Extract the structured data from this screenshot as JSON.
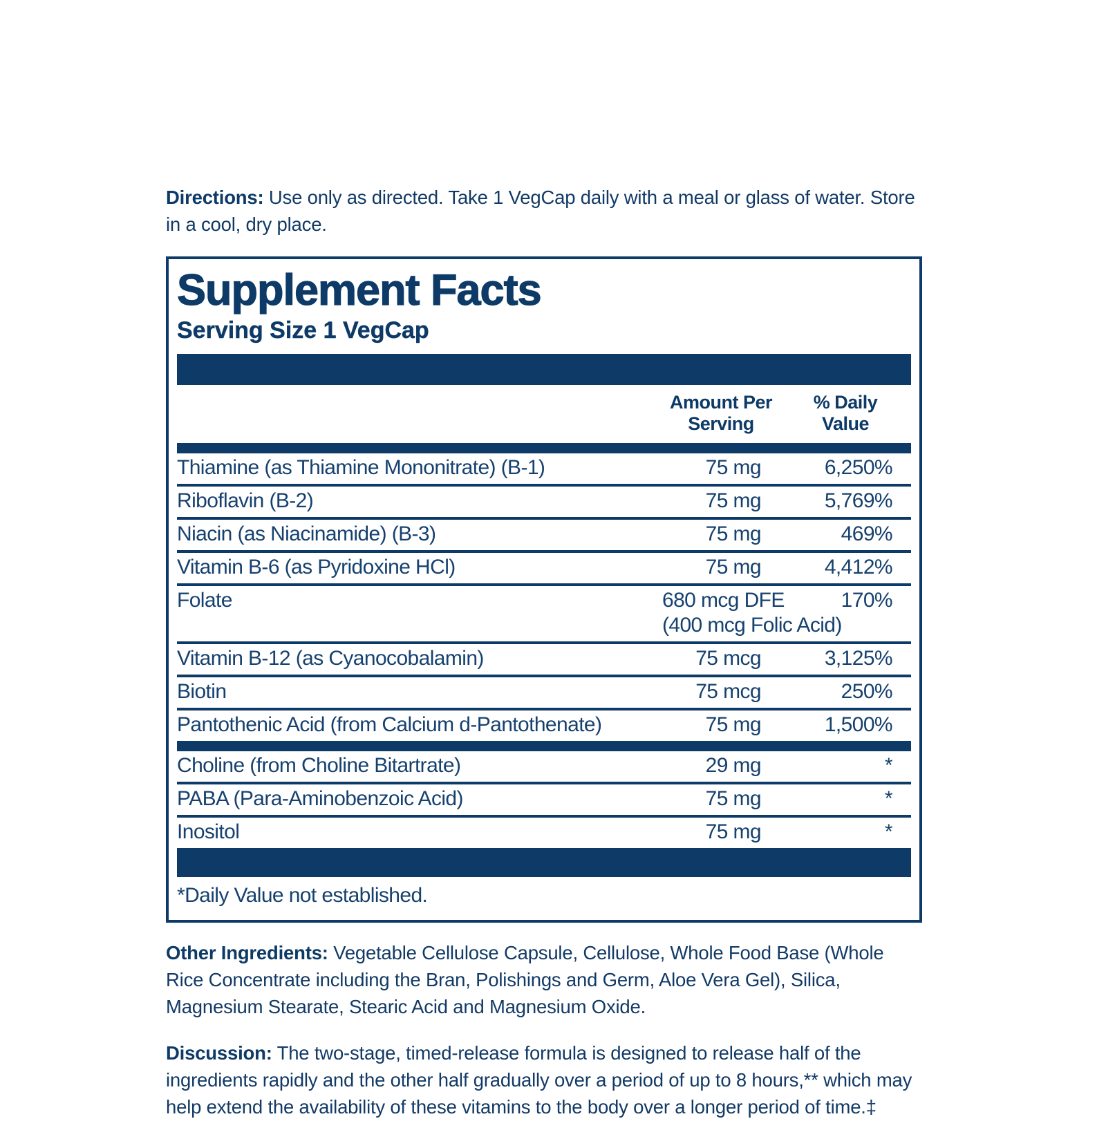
{
  "colors": {
    "navy": "#0d3a66",
    "text": "#16416f"
  },
  "directions": {
    "label": "Directions:",
    "text": " Use only as directed. Take 1 VegCap daily with a meal or glass of water. Store in a cool, dry place."
  },
  "panel": {
    "title": "Supplement Facts",
    "serving_size": "Serving Size 1 VegCap",
    "columns": {
      "amount_line1": "Amount Per",
      "amount_line2": "Serving",
      "dv_line1": "% Daily",
      "dv_line2": "Value"
    },
    "main_rows": [
      {
        "name": "Thiamine (as Thiamine Mononitrate) (B-1)",
        "amount": "75 mg",
        "dv": "6,250%"
      },
      {
        "name": "Riboflavin (B-2)",
        "amount": "75 mg",
        "dv": "5,769%"
      },
      {
        "name": "Niacin (as Niacinamide) (B-3)",
        "amount": "75 mg",
        "dv": "469%"
      },
      {
        "name": "Vitamin B-6 (as Pyridoxine HCl)",
        "amount": "75 mg",
        "dv": "4,412%"
      },
      {
        "name": "Folate",
        "amount": "680 mcg DFE",
        "amount2": "(400 mcg Folic Acid)",
        "dv": "170%"
      },
      {
        "name": "Vitamin B-12 (as Cyanocobalamin)",
        "amount": "75 mcg",
        "dv": "3,125%"
      },
      {
        "name": "Biotin",
        "amount": "75 mcg",
        "dv": "250%"
      },
      {
        "name": "Pantothenic Acid (from Calcium d-Pantothenate)",
        "amount": "75 mg",
        "dv": "1,500%"
      }
    ],
    "secondary_rows": [
      {
        "name": "Choline (from Choline Bitartrate)",
        "amount": "29 mg",
        "dv": "*"
      },
      {
        "name": "PABA (Para-Aminobenzoic Acid)",
        "amount": "75 mg",
        "dv": "*"
      },
      {
        "name": "Inositol",
        "amount": "75 mg",
        "dv": "*"
      }
    ],
    "footnote": "*Daily Value not established."
  },
  "other_ingredients": {
    "label": "Other Ingredients:",
    "text": " Vegetable Cellulose Capsule, Cellulose, Whole Food Base (Whole Rice Concentrate including the Bran, Polishings and Germ, Aloe Vera Gel), Silica, Magnesium Stearate, Stearic Acid and Magnesium Oxide."
  },
  "discussion": {
    "label": "Discussion:",
    "text": " The two-stage, timed-release formula is designed to release half of the ingredients rapidly and the other half gradually over a period of up to 8 hours,** which may help extend the availability of these vitamins to the body over a longer period of time.‡"
  }
}
